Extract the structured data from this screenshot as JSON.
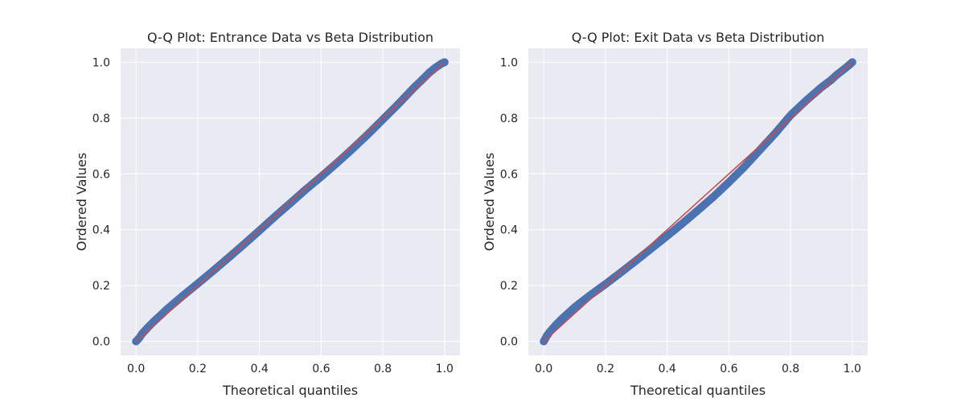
{
  "chart_data": [
    {
      "type": "scatter",
      "title": "Q-Q Plot: Entrance Data vs Beta Distribution",
      "xlabel": "Theoretical quantiles",
      "ylabel": "Ordered Values",
      "xlim": [
        -0.05,
        1.05
      ],
      "ylim": [
        -0.05,
        1.05
      ],
      "xticks": [
        0.0,
        0.2,
        0.4,
        0.6,
        0.8,
        1.0
      ],
      "yticks": [
        0.0,
        0.2,
        0.4,
        0.6,
        0.8,
        1.0
      ],
      "xtick_labels": [
        "0.0",
        "0.2",
        "0.4",
        "0.6",
        "0.8",
        "1.0"
      ],
      "ytick_labels": [
        "0.0",
        "0.2",
        "0.4",
        "0.6",
        "0.8",
        "1.0"
      ],
      "grid": true,
      "background": "#EAEAF2",
      "point_color": "#4C72B0",
      "line_color": "#C44E52",
      "reference_line": {
        "x": [
          0.0,
          1.0
        ],
        "y": [
          0.0,
          1.0
        ]
      },
      "series": [
        {
          "x": [
            0.0,
            0.01,
            0.02,
            0.04,
            0.06,
            0.08,
            0.1,
            0.15,
            0.2,
            0.25,
            0.3,
            0.35,
            0.4,
            0.45,
            0.5,
            0.55,
            0.6,
            0.65,
            0.7,
            0.75,
            0.8,
            0.85,
            0.9,
            0.93,
            0.95,
            0.97,
            0.99,
            1.0
          ],
          "y": [
            0.0,
            0.012,
            0.028,
            0.052,
            0.074,
            0.094,
            0.115,
            0.162,
            0.207,
            0.253,
            0.3,
            0.348,
            0.397,
            0.447,
            0.495,
            0.544,
            0.59,
            0.638,
            0.688,
            0.74,
            0.795,
            0.85,
            0.908,
            0.94,
            0.962,
            0.98,
            0.995,
            1.0
          ]
        }
      ]
    },
    {
      "type": "scatter",
      "title": "Q-Q Plot: Exit Data vs Beta Distribution",
      "xlabel": "Theoretical quantiles",
      "ylabel": "Ordered Values",
      "xlim": [
        -0.05,
        1.05
      ],
      "ylim": [
        -0.05,
        1.05
      ],
      "xticks": [
        0.0,
        0.2,
        0.4,
        0.6,
        0.8,
        1.0
      ],
      "yticks": [
        0.0,
        0.2,
        0.4,
        0.6,
        0.8,
        1.0
      ],
      "xtick_labels": [
        "0.0",
        "0.2",
        "0.4",
        "0.6",
        "0.8",
        "1.0"
      ],
      "ytick_labels": [
        "0.0",
        "0.2",
        "0.4",
        "0.6",
        "0.8",
        "1.0"
      ],
      "grid": true,
      "background": "#EAEAF2",
      "point_color": "#4C72B0",
      "line_color": "#C44E52",
      "reference_line": {
        "x": [
          0.0,
          1.0
        ],
        "y": [
          0.0,
          1.0
        ]
      },
      "series": [
        {
          "x": [
            0.0,
            0.01,
            0.02,
            0.04,
            0.06,
            0.08,
            0.1,
            0.15,
            0.2,
            0.25,
            0.3,
            0.35,
            0.4,
            0.45,
            0.5,
            0.55,
            0.6,
            0.65,
            0.7,
            0.75,
            0.8,
            0.85,
            0.9,
            0.93,
            0.95,
            0.97,
            0.99,
            1.0
          ],
          "y": [
            0.0,
            0.02,
            0.035,
            0.06,
            0.082,
            0.102,
            0.122,
            0.165,
            0.205,
            0.247,
            0.29,
            0.334,
            0.378,
            0.423,
            0.47,
            0.518,
            0.57,
            0.625,
            0.685,
            0.745,
            0.81,
            0.862,
            0.91,
            0.935,
            0.955,
            0.972,
            0.99,
            1.0
          ]
        }
      ]
    }
  ]
}
